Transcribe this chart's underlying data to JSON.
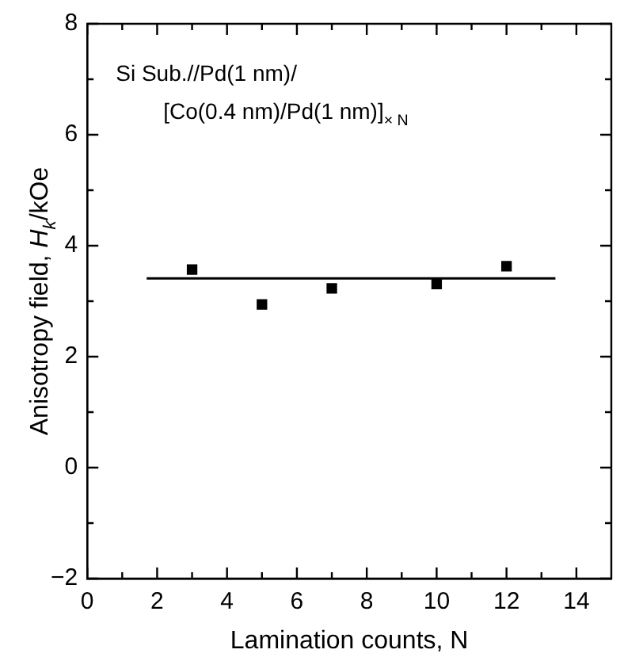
{
  "chart_data": {
    "type": "scatter",
    "xlabel": "Lamination counts, N",
    "ylabel": "Anisotropy field, H$_{k}$/kOe",
    "annotations": [
      "Si Sub.//Pd(1 nm)/",
      "[Co(0.4 nm)/Pd(1 nm)]$_{× N}$"
    ],
    "xlim": [
      0,
      15
    ],
    "ylim": [
      -2,
      8
    ],
    "xticks": [
      0,
      {
        "value": 1,
        "label": null
      },
      2,
      {
        "value": 3,
        "label": null
      },
      4,
      {
        "value": 5,
        "label": null
      },
      6,
      {
        "value": 7,
        "label": null
      },
      8,
      {
        "value": 9,
        "label": null
      },
      10,
      {
        "value": 11,
        "label": null
      },
      12,
      {
        "value": 13,
        "label": null
      },
      14
    ],
    "yticks": [
      -2,
      {
        "value": -1,
        "label": null
      },
      0,
      {
        "value": 1,
        "label": null
      },
      2,
      {
        "value": 3,
        "label": null
      },
      4,
      {
        "value": 5,
        "label": null
      },
      6,
      {
        "value": 7,
        "label": null
      },
      8
    ],
    "marker": "square",
    "grid": false,
    "legend": false,
    "series": [
      {
        "color": "#000000",
        "x": [
          3,
          5,
          7,
          10,
          12
        ],
        "values": [
          3.57,
          2.94,
          3.23,
          3.31,
          3.63
        ]
      },
      {
        "type": "line",
        "color": "#000000",
        "marker": "none",
        "x": [
          1.7,
          13.4
        ],
        "values": [
          3.41,
          3.41
        ]
      }
    ]
  }
}
